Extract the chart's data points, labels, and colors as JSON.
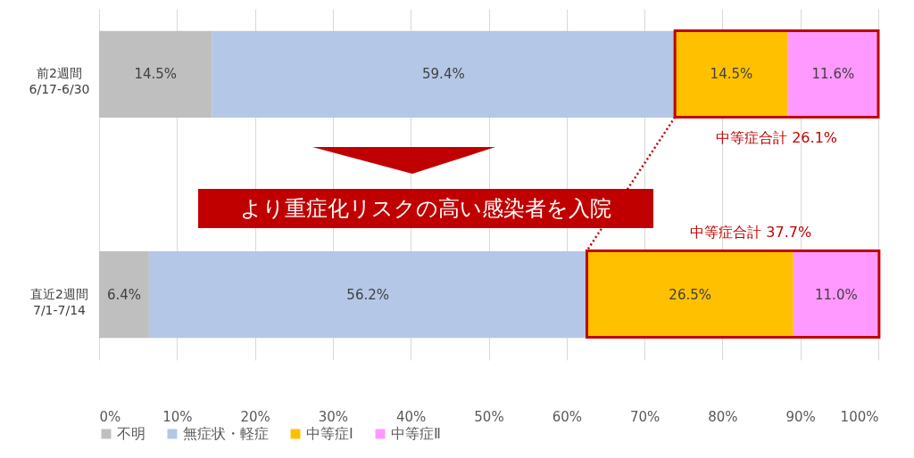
{
  "chart_data": {
    "type": "bar",
    "orientation": "horizontal",
    "stacked": true,
    "categories": [
      "前2週間\n6/17-6/30",
      "直近2週間\n7/1-7/14"
    ],
    "series": [
      {
        "name": "不明",
        "color": "#bfbfbf",
        "values": [
          14.5,
          6.4
        ],
        "value_labels": [
          "14.5%",
          "6.4%"
        ]
      },
      {
        "name": "無症状・軽症",
        "color": "#b4c7e7",
        "values": [
          59.4,
          56.2
        ],
        "value_labels": [
          "59.4%",
          "56.2%"
        ]
      },
      {
        "name": "中等症Ⅰ",
        "color": "#ffc000",
        "values": [
          14.5,
          26.5
        ],
        "value_labels": [
          "14.5%",
          "26.5%"
        ]
      },
      {
        "name": "中等症Ⅱ",
        "color": "#ff99ff",
        "values": [
          11.6,
          11.0
        ],
        "value_labels": [
          "11.6%",
          "11.0%"
        ]
      }
    ],
    "xlim": [
      0,
      100
    ],
    "xticks": [
      {
        "value": 0,
        "label": "0%"
      },
      {
        "value": 10,
        "label": "10%"
      },
      {
        "value": 20,
        "label": "20%"
      },
      {
        "value": 30,
        "label": "30%"
      },
      {
        "value": 40,
        "label": "40%"
      },
      {
        "value": 50,
        "label": "50%"
      },
      {
        "value": 60,
        "label": "60%"
      },
      {
        "value": 70,
        "label": "70%"
      },
      {
        "value": 80,
        "label": "80%"
      },
      {
        "value": 90,
        "label": "90%"
      },
      {
        "value": 100,
        "label": "100%"
      }
    ],
    "grid": "x",
    "legend": "bottom",
    "annotations": [
      "中等症合計 26.1%",
      "中等症合計 37.7%",
      "より重症化リスクの高い感染者を入院"
    ]
  }
}
